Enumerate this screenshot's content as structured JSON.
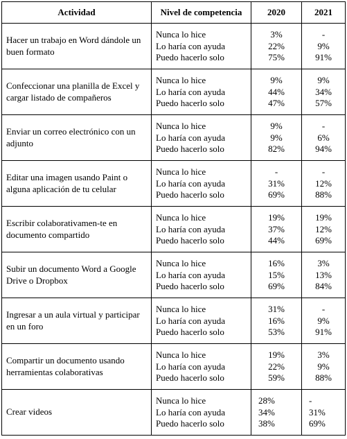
{
  "headers": {
    "activity": "Actividad",
    "level": "Nivel de competencia",
    "y2020": "2020",
    "y2021": "2021"
  },
  "levels": [
    "Nunca lo hice",
    "Lo haría con ayuda",
    "Puedo hacerlo solo"
  ],
  "rows": [
    {
      "activity": "Hacer un trabajo en Word dándole un buen formato",
      "y2020": [
        "3%",
        "22%",
        "75%"
      ],
      "y2021": [
        "-",
        "9%",
        "91%"
      ]
    },
    {
      "activity": "Confeccionar una planilla de Excel y cargar listado de compañeros",
      "y2020": [
        "9%",
        "44%",
        "47%"
      ],
      "y2021": [
        "9%",
        "34%",
        "57%"
      ]
    },
    {
      "activity": "Enviar un correo electrónico con un adjunto",
      "y2020": [
        "9%",
        "9%",
        "82%"
      ],
      "y2021": [
        "-",
        "6%",
        "94%"
      ]
    },
    {
      "activity": "Editar una imagen usando Paint o alguna aplicación de tu celular",
      "y2020": [
        "-",
        "31%",
        "69%"
      ],
      "y2021": [
        "-",
        "12%",
        "88%"
      ]
    },
    {
      "activity": "Escribir colaborativamen-te en documento compartido",
      "y2020": [
        "19%",
        "37%",
        "44%"
      ],
      "y2021": [
        "19%",
        "12%",
        "69%"
      ]
    },
    {
      "activity": "Subir un documento Word a Google Drive o Dropbox",
      "y2020": [
        "16%",
        "15%",
        "69%"
      ],
      "y2021": [
        "3%",
        "13%",
        "84%"
      ]
    },
    {
      "activity": "Ingresar a un aula virtual y participar en un foro",
      "y2020": [
        "31%",
        "16%",
        "53%"
      ],
      "y2021": [
        "-",
        "9%",
        "91%"
      ]
    },
    {
      "activity": "Compartir un documento usando herramientas colaborativas",
      "y2020": [
        "19%",
        "22%",
        "59%"
      ],
      "y2021": [
        "3%",
        "9%",
        "88%"
      ]
    },
    {
      "activity": "Crear videos",
      "y2020": [
        "28%",
        "34%",
        "38%"
      ],
      "y2021": [
        "-",
        "31%",
        "69%"
      ]
    }
  ]
}
